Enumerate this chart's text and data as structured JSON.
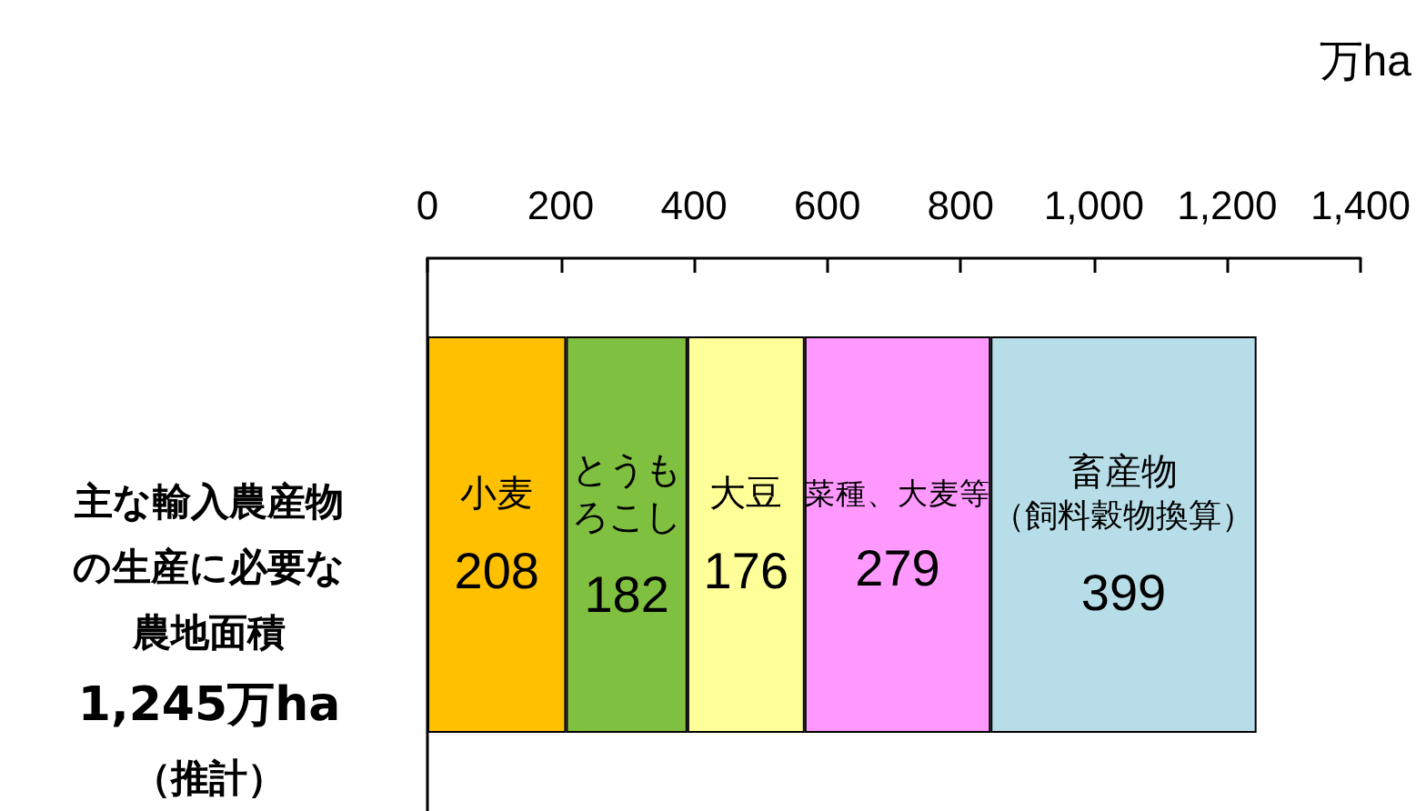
{
  "chart_data": {
    "type": "bar",
    "orientation": "horizontal",
    "stacked": true,
    "xlabel": "万ha",
    "categories": [
      null
    ],
    "series": [
      {
        "name": "小麦",
        "color": "#ffc000",
        "values": [
          208
        ]
      },
      {
        "name": "とうもろこし",
        "color": "#80c040",
        "values": [
          182
        ]
      },
      {
        "name": "大豆",
        "color": "#ffff99",
        "values": [
          176
        ]
      },
      {
        "name": "菜種、大麦等",
        "color": "#ff99ff",
        "values": [
          279
        ]
      },
      {
        "name": "畜産物（飼料穀物換算）",
        "color": "#b7dee8",
        "values": [
          399
        ]
      }
    ],
    "xlim": [
      0,
      1400
    ],
    "xticks": [
      0,
      200,
      400,
      600,
      800,
      {
        "value": 1000,
        "label": "1,000"
      },
      {
        "value": 1200,
        "label": "1,200"
      },
      {
        "value": 1400,
        "label": "1,400"
      }
    ],
    "data_labels": true,
    "legend": false,
    "grid": false,
    "annotations": [
      "主な輸入農産物の生産に必要な農地面積",
      "1,245万ha",
      "（推計）"
    ]
  }
}
